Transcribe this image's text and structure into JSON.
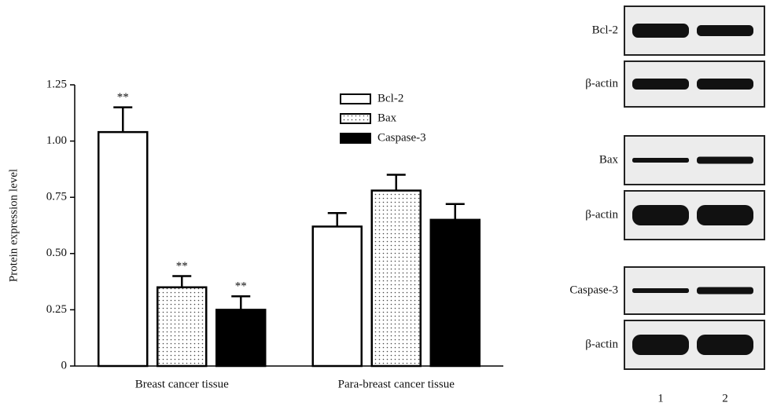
{
  "chart_data": {
    "type": "bar",
    "ylabel": "Protein expression level",
    "categories": [
      "Breast cancer tissue",
      "Para-breast cancer tissue"
    ],
    "series": [
      {
        "name": "Bcl-2",
        "color": "#ffffff",
        "values": [
          1.04,
          0.62
        ],
        "errors": [
          0.11,
          0.06
        ],
        "annotations": [
          "**",
          null
        ]
      },
      {
        "name": "Bax",
        "color": "dots",
        "values": [
          0.35,
          0.78
        ],
        "errors": [
          0.05,
          0.07
        ],
        "annotations": [
          "**",
          null
        ]
      },
      {
        "name": "Caspase-3",
        "color": "#000000",
        "values": [
          0.25,
          0.65
        ],
        "errors": [
          0.06,
          0.07
        ],
        "annotations": [
          "**",
          null
        ]
      }
    ],
    "ylim": [
      0,
      1.25
    ],
    "yticks": [
      0,
      0.25,
      {
        "value": 0.5,
        "label": "0.50"
      },
      0.75,
      {
        "value": 1,
        "label": "1.00"
      },
      1.25
    ]
  },
  "blot": {
    "rows": [
      "Bcl-2",
      "β-actin",
      "Bax",
      "β-actin",
      "Caspase-3",
      "β-actin"
    ],
    "lanes": [
      "1",
      "2"
    ]
  }
}
